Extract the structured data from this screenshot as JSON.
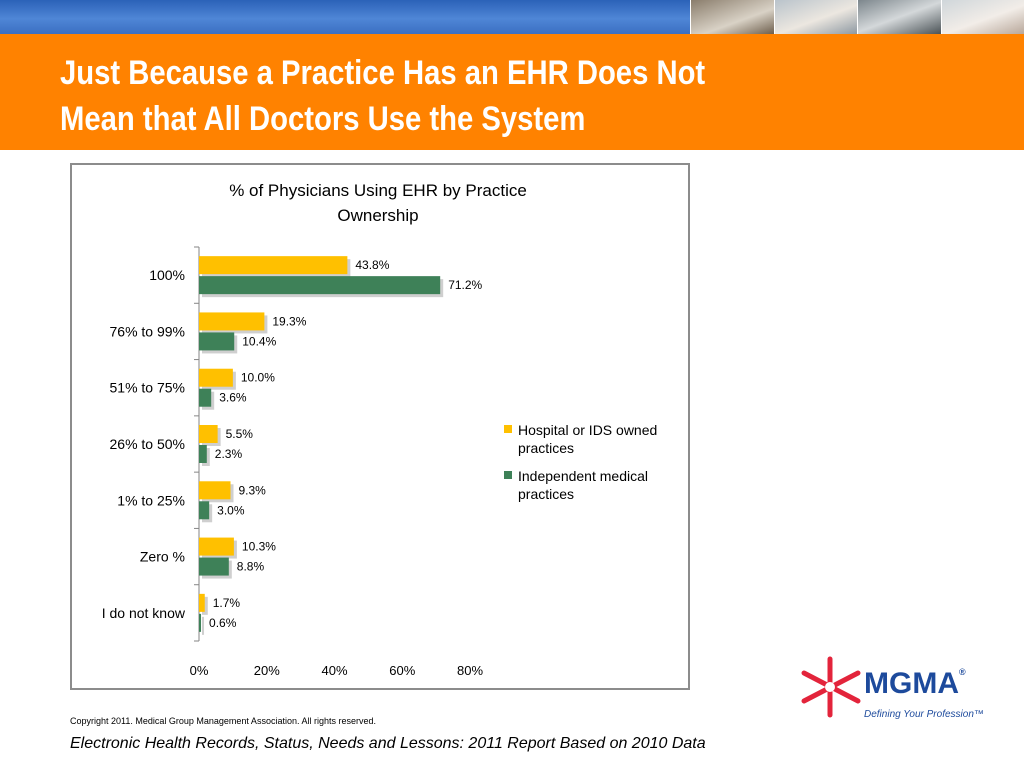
{
  "slide": {
    "title_lines": [
      "Just Because a Practice Has an EHR Does Not",
      "Mean that All Doctors Use the System"
    ],
    "copyright": "Copyright 2011. Medical Group Management Association. All rights reserved.",
    "source": "Electronic Health Records, Status, Needs and Lessons: 2011 Report Based on 2010 Data"
  },
  "logo": {
    "wordmark": "MGMA",
    "registered_mark": "®",
    "tagline": "Defining Your Profession™",
    "colors": {
      "star": "#e3243b",
      "text": "#1d4a9c"
    }
  },
  "chart_data": {
    "type": "bar",
    "orientation": "horizontal",
    "title": "% of Physicians Using EHR by Practice Ownership",
    "title_lines": [
      "% of Physicians Using EHR by Practice",
      "Ownership"
    ],
    "categories": [
      "100%",
      "76% to 99%",
      "51% to 75%",
      "26% to 50%",
      "1% to 25%",
      "Zero %",
      "I do not know"
    ],
    "series": [
      {
        "name": "Hospital or IDS owned practices",
        "legend_lines": [
          "Hospital or IDS owned",
          "practices"
        ],
        "color": "#ffc000",
        "values": [
          43.8,
          19.3,
          10.0,
          5.5,
          9.3,
          10.3,
          1.7
        ],
        "labels": [
          "43.8%",
          "19.3%",
          "10.0%",
          "5.5%",
          "9.3%",
          "10.3%",
          "1.7%"
        ]
      },
      {
        "name": "Independent medical practices",
        "legend_lines": [
          "Independent medical",
          "practices"
        ],
        "color": "#3e8158",
        "values": [
          71.2,
          10.4,
          3.6,
          2.3,
          3.0,
          8.8,
          0.6
        ],
        "labels": [
          "71.2%",
          "10.4%",
          "3.6%",
          "2.3%",
          "3.0%",
          "8.8%",
          "0.6%"
        ]
      }
    ],
    "xlim": [
      0,
      80
    ],
    "xticks": [
      0,
      20,
      40,
      60,
      80
    ],
    "xtick_labels": [
      "0%",
      "20%",
      "40%",
      "60%",
      "80%"
    ],
    "xlabel": "",
    "ylabel": "",
    "grid": false,
    "legend_position": "right"
  }
}
